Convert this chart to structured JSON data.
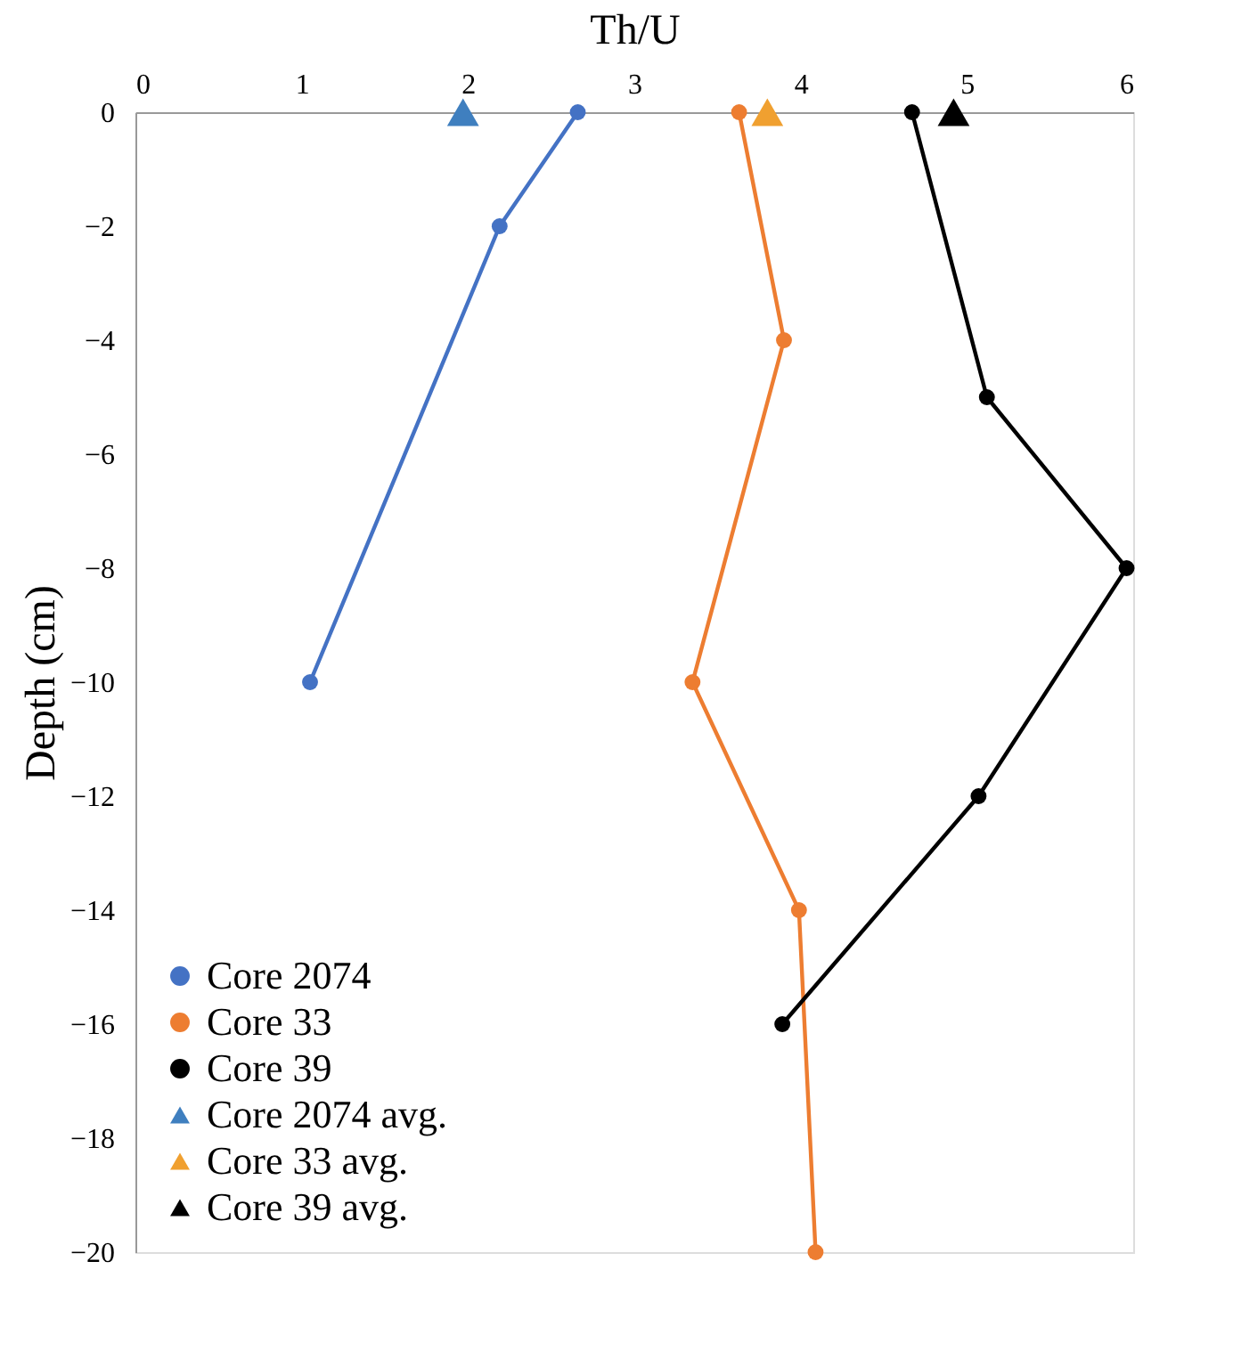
{
  "chart_data": {
    "type": "line",
    "xlabel": "Th/U",
    "ylabel": "Depth (cm)",
    "xlim": [
      0,
      6
    ],
    "xticks": [
      0,
      1,
      2,
      3,
      4,
      5,
      6
    ],
    "ylim": [
      -20,
      0
    ],
    "yticks": [
      0,
      -2,
      -4,
      -6,
      -8,
      -10,
      -12,
      -14,
      -16,
      -18,
      -20
    ],
    "grid": false,
    "legend": "bottom left",
    "marker": "circle",
    "line_style": "solid",
    "series": [
      {
        "name": "Core 2074",
        "color": "#4472c4",
        "x": [
          2.66,
          2.19,
          1.05
        ],
        "values": [
          0,
          -2,
          -10
        ]
      },
      {
        "name": "Core 33",
        "color": "#ed7d31",
        "x": [
          3.63,
          3.9,
          3.35,
          3.99,
          4.09
        ],
        "values": [
          0,
          -4,
          -10,
          -14,
          -20
        ]
      },
      {
        "name": "Core 39",
        "color": "#000000",
        "x": [
          4.67,
          5.12,
          5.96,
          5.07,
          3.89
        ],
        "values": [
          0,
          -5,
          -8,
          -12,
          -16
        ]
      },
      {
        "name": "Core 2074 avg.",
        "type": "scatter",
        "marker": "triangle",
        "color": "#3f7fbf",
        "x": [
          1.97
        ],
        "values": [
          0
        ]
      },
      {
        "name": "Core 33 avg.",
        "type": "scatter",
        "marker": "triangle",
        "color": "#f0a030",
        "x": [
          3.8
        ],
        "values": [
          0
        ]
      },
      {
        "name": "Core 39 avg.",
        "type": "scatter",
        "marker": "triangle",
        "color": "#000000",
        "x": [
          4.92
        ],
        "values": [
          0
        ]
      }
    ]
  }
}
